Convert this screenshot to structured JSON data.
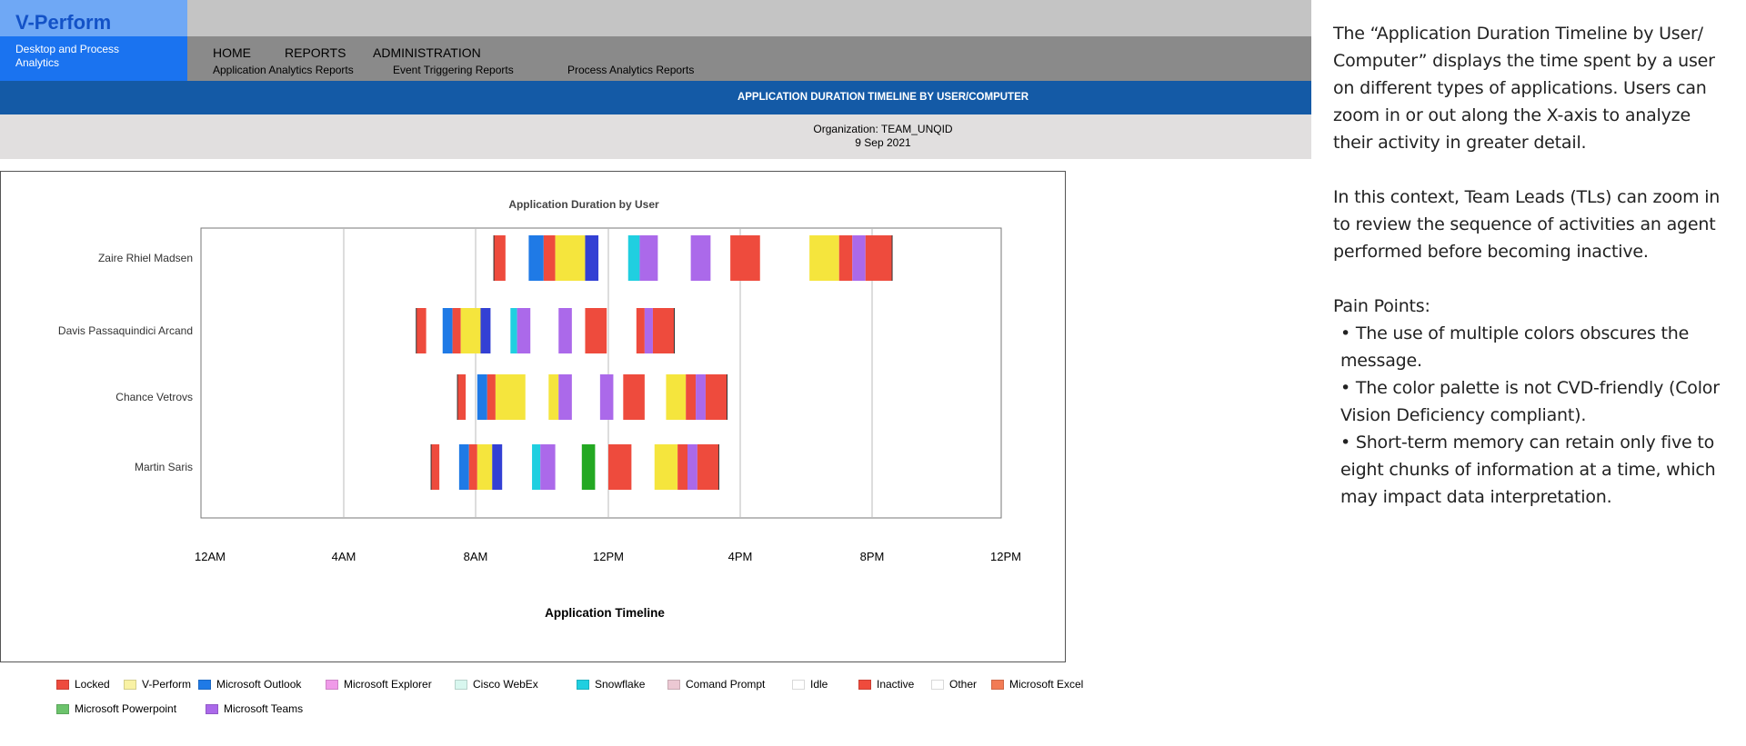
{
  "brand": {
    "title": "V-Perform",
    "subtitle_line1": "Desktop and Process",
    "subtitle_line2": "Analytics"
  },
  "nav": {
    "items": [
      {
        "label": "HOME"
      },
      {
        "label": "REPORTS"
      },
      {
        "label": "ADMINISTRATION"
      }
    ],
    "subitems": [
      {
        "label": "Application Analytics Reports"
      },
      {
        "label": "Event Triggering Reports"
      },
      {
        "label": "Process Analytics Reports"
      }
    ]
  },
  "report": {
    "title": "APPLICATION DURATION TIMELINE BY USER/COMPUTER",
    "organization": "Organization: TEAM_UNQID",
    "date": "9 Sep 2021"
  },
  "colors": {
    "Locked": "#ee4b3d",
    "V-Perform": "#f5e53d",
    "Microsoft Outlook": "#1f7ae6",
    "Microsoft Explorer": "#f09ae9",
    "Cisco WebEx": "#d8f7ef",
    "Snowflake": "#20cfe0",
    "Comand Prompt": "#ecc8d3",
    "Idle": "#ffffff",
    "Inactive": "#ef4b3c",
    "Other": "#ffffff",
    "Microsoft Excel": "#f27b55",
    "Microsoft Powerpoint": "#6cc36c",
    "Microsoft Teams": "#ab69ea",
    "dark_blue": "#3340d4",
    "green": "#23a822"
  },
  "chart_data": {
    "type": "timeline",
    "title": "Application Duration by User",
    "xlabel": "Application Timeline",
    "ylabel": "",
    "x_ticks": [
      "12AM",
      "4AM",
      "8AM",
      "12PM",
      "4PM",
      "8PM",
      "12PM"
    ],
    "x_range_hours": [
      0,
      24
    ],
    "grid": true,
    "legend_position": "bottom",
    "rows": [
      {
        "user": "Zaire Rhiel Madsen",
        "segments": [
          {
            "start": 8.55,
            "end": 8.9,
            "app": "Locked"
          },
          {
            "start": 9.6,
            "end": 10.05,
            "app": "Microsoft Outlook"
          },
          {
            "start": 10.05,
            "end": 10.4,
            "app": "Locked"
          },
          {
            "start": 10.4,
            "end": 11.3,
            "app": "V-Perform"
          },
          {
            "start": 11.3,
            "end": 11.7,
            "app": "dark_blue"
          },
          {
            "start": 12.6,
            "end": 12.95,
            "app": "Snowflake"
          },
          {
            "start": 12.95,
            "end": 13.5,
            "app": "Microsoft Teams"
          },
          {
            "start": 14.5,
            "end": 15.1,
            "app": "Microsoft Teams"
          },
          {
            "start": 15.7,
            "end": 16.6,
            "app": "Locked"
          },
          {
            "start": 18.1,
            "end": 19.0,
            "app": "V-Perform"
          },
          {
            "start": 19.0,
            "end": 19.4,
            "app": "Locked"
          },
          {
            "start": 19.4,
            "end": 19.8,
            "app": "Microsoft Teams"
          },
          {
            "start": 19.8,
            "end": 20.6,
            "app": "Locked"
          }
        ]
      },
      {
        "user": "Davis Passaquindici Arcand",
        "segments": [
          {
            "start": 6.2,
            "end": 6.5,
            "app": "Locked"
          },
          {
            "start": 7.0,
            "end": 7.3,
            "app": "Microsoft Outlook"
          },
          {
            "start": 7.3,
            "end": 7.55,
            "app": "Locked"
          },
          {
            "start": 7.55,
            "end": 8.15,
            "app": "V-Perform"
          },
          {
            "start": 8.15,
            "end": 8.45,
            "app": "dark_blue"
          },
          {
            "start": 9.05,
            "end": 9.25,
            "app": "Snowflake"
          },
          {
            "start": 9.25,
            "end": 9.65,
            "app": "Microsoft Teams"
          },
          {
            "start": 10.5,
            "end": 10.9,
            "app": "Microsoft Teams"
          },
          {
            "start": 11.3,
            "end": 11.95,
            "app": "Locked"
          },
          {
            "start": 12.85,
            "end": 13.1,
            "app": "Locked"
          },
          {
            "start": 13.1,
            "end": 13.35,
            "app": "Microsoft Teams"
          },
          {
            "start": 13.35,
            "end": 14.0,
            "app": "Locked"
          }
        ]
      },
      {
        "user": "Chance Vetrovs",
        "segments": [
          {
            "start": 7.45,
            "end": 7.7,
            "app": "Locked"
          },
          {
            "start": 8.05,
            "end": 8.35,
            "app": "Microsoft Outlook"
          },
          {
            "start": 8.35,
            "end": 8.6,
            "app": "Locked"
          },
          {
            "start": 8.6,
            "end": 9.5,
            "app": "V-Perform"
          },
          {
            "start": 10.2,
            "end": 10.5,
            "app": "V-Perform"
          },
          {
            "start": 10.5,
            "end": 10.9,
            "app": "Microsoft Teams"
          },
          {
            "start": 11.75,
            "end": 12.15,
            "app": "Microsoft Teams"
          },
          {
            "start": 12.45,
            "end": 13.1,
            "app": "Locked"
          },
          {
            "start": 13.75,
            "end": 14.35,
            "app": "V-Perform"
          },
          {
            "start": 14.35,
            "end": 14.65,
            "app": "Locked"
          },
          {
            "start": 14.65,
            "end": 14.95,
            "app": "Microsoft Teams"
          },
          {
            "start": 14.95,
            "end": 15.6,
            "app": "Locked"
          }
        ]
      },
      {
        "user": "Martin Saris",
        "segments": [
          {
            "start": 6.65,
            "end": 6.9,
            "app": "Locked"
          },
          {
            "start": 7.5,
            "end": 7.8,
            "app": "Microsoft Outlook"
          },
          {
            "start": 7.8,
            "end": 8.05,
            "app": "Locked"
          },
          {
            "start": 8.05,
            "end": 8.5,
            "app": "V-Perform"
          },
          {
            "start": 8.5,
            "end": 8.8,
            "app": "dark_blue"
          },
          {
            "start": 9.7,
            "end": 9.95,
            "app": "Snowflake"
          },
          {
            "start": 9.95,
            "end": 10.4,
            "app": "Microsoft Teams"
          },
          {
            "start": 11.2,
            "end": 11.6,
            "app": "green"
          },
          {
            "start": 12.0,
            "end": 12.7,
            "app": "Locked"
          },
          {
            "start": 13.4,
            "end": 14.1,
            "app": "V-Perform"
          },
          {
            "start": 14.1,
            "end": 14.4,
            "app": "Locked"
          },
          {
            "start": 14.4,
            "end": 14.7,
            "app": "Microsoft Teams"
          },
          {
            "start": 14.7,
            "end": 15.35,
            "app": "Locked"
          }
        ]
      }
    ]
  },
  "legend": [
    {
      "label": "Locked",
      "color": "#ee4b3d"
    },
    {
      "label": "V-Perform",
      "color": "#f9f2a4"
    },
    {
      "label": "Microsoft Outlook",
      "color": "#1f7ae6"
    },
    {
      "label": "Microsoft Explorer",
      "color": "#f09ae9"
    },
    {
      "label": "Cisco WebEx",
      "color": "#d8f7ef"
    },
    {
      "label": "Snowflake",
      "color": "#20cfe0"
    },
    {
      "label": "Comand Prompt",
      "color": "#ecc8d3"
    },
    {
      "label": "Idle",
      "color": "#ffffff"
    },
    {
      "label": "Inactive",
      "color": "#ef4b3c"
    },
    {
      "label": "Other",
      "color": "#ffffff"
    },
    {
      "label": "Microsoft Excel",
      "color": "#f27b55"
    },
    {
      "label": "Microsoft Powerpoint",
      "color": "#6cc36c"
    },
    {
      "label": "Microsoft Teams",
      "color": "#ab69ea"
    }
  ],
  "side_panel": {
    "intro": "The “Application Duration Timeline by User/ Computer” displays the time spent by a user on different types of applications. Users can zoom in or out along the X-axis to analyze their activity in greater detail.",
    "context": "In this context, Team Leads (TLs) can zoom in to review the sequence of activities an agent performed before becoming inactive.",
    "pain_title": "Pain Points:",
    "pain_points": [
      "• The use of multiple colors obscures the message.",
      "• The color palette is not CVD-friendly (Color Vision Deficiency compliant).",
      "• Short-term memory can retain only five to eight chunks of information at a time, which may impact data interpretation."
    ]
  }
}
